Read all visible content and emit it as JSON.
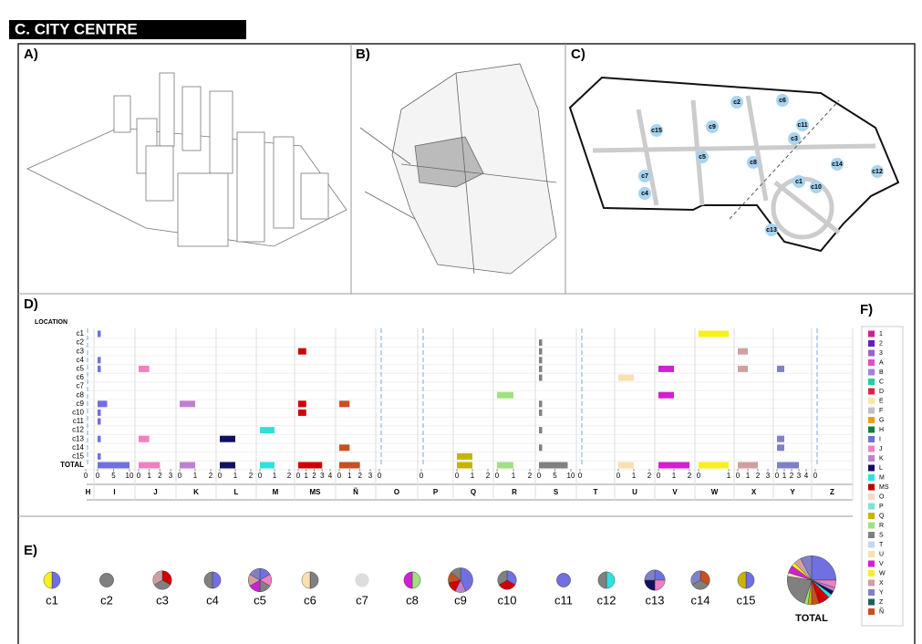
{
  "header": {
    "title": "C. CITY CENTRE"
  },
  "panels": {
    "a": "A)",
    "b": "B)",
    "c": "C)",
    "d": "D)",
    "e": "E)",
    "f": "F)"
  },
  "chart_data": {
    "type": "bar",
    "y_label": "LOCATION",
    "locations": [
      "c1",
      "c2",
      "c3",
      "c4",
      "c5",
      "c6",
      "c7",
      "c8",
      "c9",
      "c10",
      "c11",
      "c12",
      "c13",
      "c14",
      "c15",
      "TOTAL"
    ],
    "facets": [
      {
        "name": "H",
        "color": "#7070e0",
        "xlim": [
          0,
          1
        ],
        "xticks": [
          0
        ],
        "values": [
          null,
          null,
          null,
          null,
          null,
          null,
          null,
          null,
          null,
          null,
          null,
          null,
          null,
          null,
          null,
          null
        ]
      },
      {
        "name": "I",
        "color": "#7070e0",
        "xlim": [
          0,
          10
        ],
        "xticks": [
          0,
          5,
          10
        ],
        "values": [
          1,
          null,
          null,
          1,
          1,
          null,
          null,
          null,
          3,
          1,
          1,
          null,
          1,
          null,
          1,
          10
        ]
      },
      {
        "name": "J",
        "color": "#f080c0",
        "xlim": [
          0,
          3
        ],
        "xticks": [
          0,
          1,
          2,
          3
        ],
        "values": [
          null,
          null,
          null,
          null,
          1,
          null,
          null,
          null,
          null,
          null,
          null,
          null,
          1,
          null,
          null,
          2
        ]
      },
      {
        "name": "K",
        "color": "#c080d0",
        "xlim": [
          0,
          2
        ],
        "xticks": [
          0,
          1,
          2
        ],
        "values": [
          null,
          null,
          null,
          null,
          null,
          null,
          null,
          null,
          1,
          null,
          null,
          null,
          null,
          null,
          null,
          1
        ]
      },
      {
        "name": "L",
        "color": "#101060",
        "xlim": [
          0,
          2
        ],
        "xticks": [
          0,
          1,
          2
        ],
        "values": [
          null,
          null,
          null,
          null,
          null,
          null,
          null,
          null,
          null,
          null,
          null,
          null,
          1,
          null,
          null,
          1
        ]
      },
      {
        "name": "M",
        "color": "#30e0e0",
        "xlim": [
          0,
          2
        ],
        "xticks": [
          0,
          1,
          2
        ],
        "values": [
          null,
          null,
          null,
          null,
          null,
          null,
          null,
          null,
          null,
          null,
          null,
          1,
          null,
          null,
          null,
          1
        ]
      },
      {
        "name": "MS",
        "color": "#d00000",
        "xlim": [
          0,
          4
        ],
        "xticks": [
          0,
          1,
          2,
          3,
          4
        ],
        "values": [
          null,
          null,
          1,
          null,
          null,
          null,
          null,
          null,
          1,
          1,
          null,
          null,
          null,
          null,
          null,
          3
        ]
      },
      {
        "name": "Ñ",
        "color": "#c85020",
        "xlim": [
          0,
          3
        ],
        "xticks": [
          0,
          1,
          2,
          3
        ],
        "values": [
          null,
          null,
          null,
          null,
          null,
          null,
          null,
          null,
          1,
          null,
          null,
          null,
          null,
          1,
          null,
          2
        ]
      },
      {
        "name": "O",
        "color": "#f8d8c8",
        "xlim": [
          0,
          1
        ],
        "xticks": [
          0
        ],
        "values": [
          null,
          null,
          null,
          null,
          null,
          null,
          null,
          null,
          null,
          null,
          null,
          null,
          null,
          null,
          null,
          null
        ]
      },
      {
        "name": "P",
        "color": "#80e0d0",
        "xlim": [
          0,
          1
        ],
        "xticks": [
          0
        ],
        "values": [
          null,
          null,
          null,
          null,
          null,
          null,
          null,
          null,
          null,
          null,
          null,
          null,
          null,
          null,
          null,
          null
        ]
      },
      {
        "name": "Q",
        "color": "#c8b400",
        "xlim": [
          0,
          2
        ],
        "xticks": [
          0,
          1,
          2
        ],
        "values": [
          null,
          null,
          null,
          null,
          null,
          null,
          null,
          null,
          null,
          null,
          null,
          null,
          null,
          null,
          1,
          1
        ]
      },
      {
        "name": "R",
        "color": "#a0e080",
        "xlim": [
          0,
          2
        ],
        "xticks": [
          0,
          1,
          2
        ],
        "values": [
          null,
          null,
          null,
          null,
          null,
          null,
          null,
          1,
          null,
          null,
          null,
          null,
          null,
          null,
          null,
          1
        ]
      },
      {
        "name": "S",
        "color": "#808080",
        "xlim": [
          0,
          10
        ],
        "xticks": [
          0,
          5,
          10
        ],
        "values": [
          null,
          1,
          1,
          1,
          1,
          1,
          null,
          null,
          1,
          1,
          null,
          1,
          null,
          1,
          null,
          9
        ]
      },
      {
        "name": "T",
        "color": "#c0d8f0",
        "xlim": [
          0,
          1
        ],
        "xticks": [
          0
        ],
        "values": [
          null,
          null,
          null,
          null,
          null,
          null,
          null,
          null,
          null,
          null,
          null,
          null,
          null,
          null,
          null,
          null
        ]
      },
      {
        "name": "U",
        "color": "#f8e0b0",
        "xlim": [
          0,
          2
        ],
        "xticks": [
          0,
          1,
          2
        ],
        "values": [
          null,
          null,
          null,
          null,
          null,
          1,
          null,
          null,
          null,
          null,
          null,
          null,
          null,
          null,
          null,
          1
        ]
      },
      {
        "name": "V",
        "color": "#d020d0",
        "xlim": [
          0,
          2
        ],
        "xticks": [
          0,
          1,
          2
        ],
        "values": [
          null,
          null,
          null,
          null,
          1,
          null,
          null,
          1,
          null,
          null,
          null,
          null,
          null,
          null,
          null,
          2
        ]
      },
      {
        "name": "W",
        "color": "#f8f020",
        "xlim": [
          0,
          1
        ],
        "xticks": [
          0,
          1
        ],
        "values": [
          1,
          null,
          null,
          null,
          null,
          null,
          null,
          null,
          null,
          null,
          null,
          null,
          null,
          null,
          null,
          1
        ]
      },
      {
        "name": "X",
        "color": "#d0a0a0",
        "xlim": [
          0,
          3
        ],
        "xticks": [
          0,
          1,
          2,
          3
        ],
        "values": [
          null,
          null,
          1,
          null,
          1,
          null,
          null,
          null,
          null,
          null,
          null,
          null,
          null,
          null,
          null,
          2
        ]
      },
      {
        "name": "Y",
        "color": "#8080c8",
        "xlim": [
          0,
          4
        ],
        "xticks": [
          0,
          1,
          2,
          3,
          4
        ],
        "values": [
          null,
          null,
          null,
          null,
          1,
          null,
          null,
          null,
          null,
          null,
          null,
          null,
          1,
          1,
          null,
          3
        ]
      },
      {
        "name": "Z",
        "color": "#206060",
        "xlim": [
          0,
          1
        ],
        "xticks": [
          0
        ],
        "values": [
          null,
          null,
          null,
          null,
          null,
          null,
          null,
          null,
          null,
          null,
          null,
          null,
          null,
          null,
          null,
          null
        ]
      }
    ]
  },
  "legend": [
    {
      "name": "1",
      "color": "#d0208e"
    },
    {
      "name": "2",
      "color": "#6020c0"
    },
    {
      "name": "3",
      "color": "#a060d0"
    },
    {
      "name": "A",
      "color": "#e050c0"
    },
    {
      "name": "B",
      "color": "#a080e0"
    },
    {
      "name": "C",
      "color": "#20d0a0"
    },
    {
      "name": "D",
      "color": "#e02040"
    },
    {
      "name": "E",
      "color": "#f8e8a0"
    },
    {
      "name": "F",
      "color": "#c0c0c0"
    },
    {
      "name": "G",
      "color": "#e8a020"
    },
    {
      "name": "H",
      "color": "#108040"
    },
    {
      "name": "I",
      "color": "#7070e0"
    },
    {
      "name": "J",
      "color": "#f080c0"
    },
    {
      "name": "K",
      "color": "#c080d0"
    },
    {
      "name": "L",
      "color": "#101060"
    },
    {
      "name": "M",
      "color": "#30e0e0"
    },
    {
      "name": "MS",
      "color": "#c00000"
    },
    {
      "name": "O",
      "color": "#f8d8c8"
    },
    {
      "name": "P",
      "color": "#80e0d0"
    },
    {
      "name": "Q",
      "color": "#c8b400"
    },
    {
      "name": "R",
      "color": "#a0e080"
    },
    {
      "name": "S",
      "color": "#808080"
    },
    {
      "name": "T",
      "color": "#c0d8f0"
    },
    {
      "name": "U",
      "color": "#f8e0b0"
    },
    {
      "name": "V",
      "color": "#d020d0"
    },
    {
      "name": "W",
      "color": "#f8f020"
    },
    {
      "name": "X",
      "color": "#d0a0a0"
    },
    {
      "name": "Y",
      "color": "#8080c8"
    },
    {
      "name": "Z",
      "color": "#206060"
    },
    {
      "name": "Ñ",
      "color": "#c85020"
    }
  ]
}
